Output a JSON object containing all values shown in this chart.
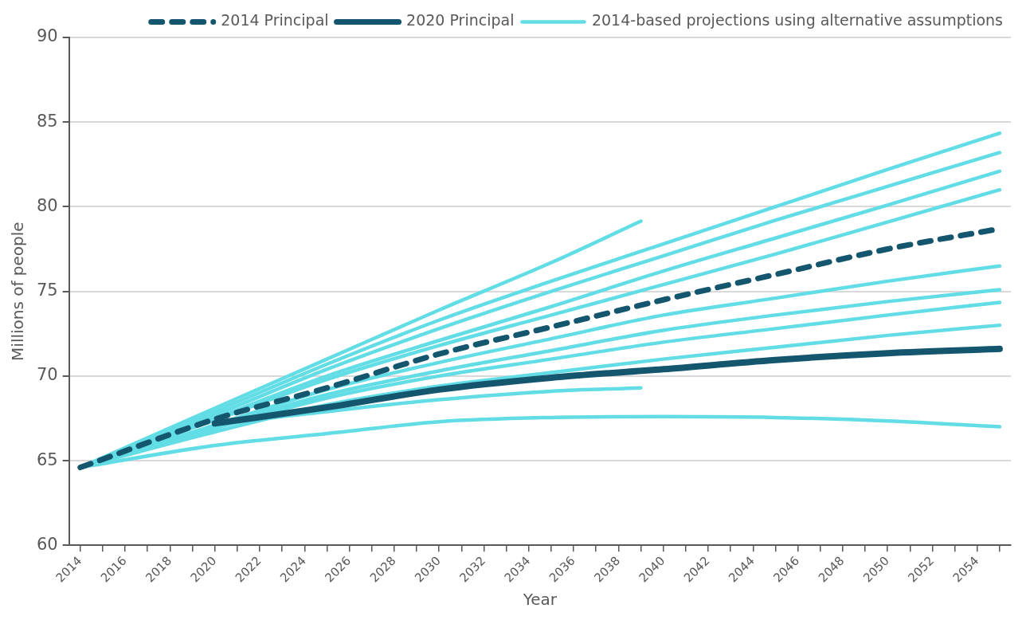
{
  "chart_data": {
    "type": "line",
    "xlabel": "Year",
    "ylabel": "Millions of people",
    "legend": "top",
    "grid": "y",
    "marker": "none",
    "xlim": [
      2013.5,
      2055.5
    ],
    "xticks": [
      {
        "value": 2014,
        "label": "2014"
      },
      {
        "value": 2015,
        "label": null
      },
      {
        "value": 2016,
        "label": "2016"
      },
      {
        "value": 2017,
        "label": null
      },
      {
        "value": 2018,
        "label": "2018"
      },
      {
        "value": 2019,
        "label": null
      },
      {
        "value": 2020,
        "label": "2020"
      },
      {
        "value": 2021,
        "label": null
      },
      {
        "value": 2022,
        "label": "2022"
      },
      {
        "value": 2023,
        "label": null
      },
      {
        "value": 2024,
        "label": "2024"
      },
      {
        "value": 2025,
        "label": null
      },
      {
        "value": 2026,
        "label": "2026"
      },
      {
        "value": 2027,
        "label": null
      },
      {
        "value": 2028,
        "label": "2028"
      },
      {
        "value": 2029,
        "label": null
      },
      {
        "value": 2030,
        "label": "2030"
      },
      {
        "value": 2031,
        "label": null
      },
      {
        "value": 2032,
        "label": "2032"
      },
      {
        "value": 2033,
        "label": null
      },
      {
        "value": 2034,
        "label": "2034"
      },
      {
        "value": 2035,
        "label": null
      },
      {
        "value": 2036,
        "label": "2036"
      },
      {
        "value": 2037,
        "label": null
      },
      {
        "value": 2038,
        "label": "2038"
      },
      {
        "value": 2039,
        "label": null
      },
      {
        "value": 2040,
        "label": "2040"
      },
      {
        "value": 2041,
        "label": null
      },
      {
        "value": 2042,
        "label": "2042"
      },
      {
        "value": 2043,
        "label": null
      },
      {
        "value": 2044,
        "label": "2044"
      },
      {
        "value": 2045,
        "label": null
      },
      {
        "value": 2046,
        "label": "2046"
      },
      {
        "value": 2047,
        "label": null
      },
      {
        "value": 2048,
        "label": "2048"
      },
      {
        "value": 2049,
        "label": null
      },
      {
        "value": 2050,
        "label": "2050"
      },
      {
        "value": 2051,
        "label": null
      },
      {
        "value": 2052,
        "label": "2052"
      },
      {
        "value": 2053,
        "label": null
      },
      {
        "value": 2054,
        "label": "2054"
      },
      {
        "value": 2055,
        "label": null
      }
    ],
    "ylim": [
      60,
      90
    ],
    "yticks": [
      60,
      65,
      70,
      75,
      80,
      85,
      90
    ],
    "series": [
      {
        "name": "2014-based projections using alternative assumptions",
        "color": "#62dde6",
        "line_style": "solid",
        "x": [
          2014,
          2020,
          2025,
          2030,
          2035,
          2040,
          2045,
          2050,
          2055
        ],
        "values": [
          64.6,
          67.9,
          70.7,
          73.3,
          75.6,
          77.8,
          80.0,
          82.2,
          84.35
        ]
      },
      {
        "color": "#62dde6",
        "line_style": "solid",
        "x": [
          2014,
          2020,
          2025,
          2030,
          2035,
          2040,
          2045,
          2050,
          2055
        ],
        "values": [
          64.6,
          67.7,
          70.4,
          72.8,
          75.0,
          77.1,
          79.2,
          81.2,
          83.2
        ]
      },
      {
        "color": "#62dde6",
        "line_style": "solid",
        "x": [
          2014,
          2020,
          2025,
          2030,
          2035,
          2040,
          2045,
          2050,
          2055
        ],
        "values": [
          64.6,
          67.5,
          70.0,
          72.1,
          74.1,
          76.2,
          78.15,
          80.1,
          82.1
        ]
      },
      {
        "color": "#62dde6",
        "line_style": "solid",
        "x": [
          2014,
          2020,
          2025,
          2030,
          2035,
          2040,
          2045,
          2050,
          2055
        ],
        "values": [
          64.6,
          67.4,
          69.8,
          71.8,
          73.6,
          75.4,
          77.2,
          79.1,
          81.0
        ]
      },
      {
        "color": "#62dde6",
        "line_style": "solid",
        "x": [
          2014,
          2020,
          2025,
          2030,
          2035,
          2040,
          2045,
          2050,
          2055
        ],
        "values": [
          64.6,
          67.1,
          69.2,
          70.8,
          72.2,
          73.6,
          74.6,
          75.6,
          76.5
        ]
      },
      {
        "color": "#62dde6",
        "line_style": "solid",
        "x": [
          2014,
          2020,
          2025,
          2030,
          2035,
          2040,
          2045,
          2050,
          2055
        ],
        "values": [
          64.6,
          67.0,
          68.9,
          70.3,
          71.5,
          72.7,
          73.6,
          74.4,
          75.1
        ]
      },
      {
        "color": "#62dde6",
        "line_style": "solid",
        "x": [
          2014,
          2020,
          2025,
          2030,
          2035,
          2040,
          2045,
          2050,
          2055
        ],
        "values": [
          64.6,
          66.9,
          68.7,
          70.0,
          71.0,
          72.0,
          72.8,
          73.6,
          74.35
        ]
      },
      {
        "color": "#62dde6",
        "line_style": "solid",
        "x": [
          2014,
          2020,
          2025,
          2030,
          2035,
          2040,
          2045,
          2050,
          2055
        ],
        "values": [
          64.6,
          66.7,
          68.3,
          69.4,
          70.2,
          71.0,
          71.7,
          72.4,
          73.0
        ]
      },
      {
        "color": "#62dde6",
        "line_style": "solid",
        "x": [
          2014,
          2020,
          2025,
          2030,
          2035,
          2039
        ],
        "values": [
          64.6,
          68.1,
          71.0,
          73.9,
          76.7,
          79.15
        ]
      },
      {
        "color": "#62dde6",
        "line_style": "solid",
        "x": [
          2014,
          2020,
          2025,
          2030,
          2035,
          2039
        ],
        "values": [
          64.6,
          67.0,
          67.9,
          68.6,
          69.1,
          69.3
        ]
      },
      {
        "color": "#62dde6",
        "line_style": "solid",
        "x": [
          2014,
          2020,
          2025,
          2030,
          2035,
          2040,
          2045,
          2050,
          2055
        ],
        "values": [
          64.6,
          65.9,
          66.6,
          67.3,
          67.55,
          67.6,
          67.55,
          67.35,
          67.0
        ]
      },
      {
        "name": "2020 Principal",
        "color": "#15566f",
        "line_style": "solid",
        "x": [
          2020,
          2025,
          2030,
          2035,
          2040,
          2045,
          2050,
          2055
        ],
        "values": [
          67.2,
          68.15,
          69.2,
          69.9,
          70.4,
          70.95,
          71.35,
          71.6
        ]
      },
      {
        "name": "2014 Principal",
        "color": "#15566f",
        "line_style": "dashed",
        "x": [
          2014,
          2020,
          2025,
          2030,
          2035,
          2040,
          2045,
          2050,
          2055
        ],
        "values": [
          64.6,
          67.45,
          69.3,
          71.3,
          72.9,
          74.5,
          76.0,
          77.5,
          78.7
        ]
      }
    ]
  }
}
